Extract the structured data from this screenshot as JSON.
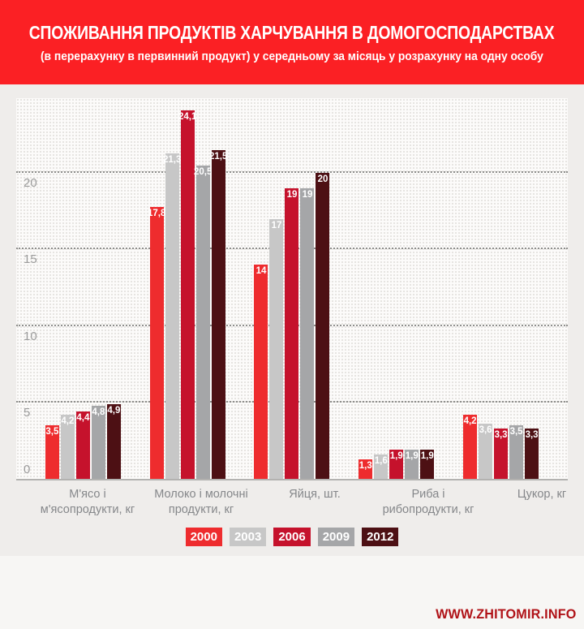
{
  "header": {
    "title": "СПОЖИВАННЯ ПРОДУКТІВ ХАРЧУВАННЯ В ДОМОГОСПОДАРСТВАХ",
    "subtitle": "(в перерахунку в первинний продукт) у середньому за місяць у розрахунку на одну особу"
  },
  "colors": {
    "header_bg": "#fb2024",
    "page_bg": "#efedeb",
    "plot_bg": "#fcfbfa",
    "gridline": "#8e8e8c",
    "axis_label": "#9b9b9b",
    "category_label": "#85878a",
    "footer_text": "#b01217"
  },
  "chart_data": {
    "type": "bar",
    "title": "СПОЖИВАННЯ ПРОДУКТІВ ХАРЧУВАННЯ В ДОМОГОСПОДАРСТВАХ",
    "subtitle": "(в перерахунку в первинний продукт) у середньому за місяць у розрахунку на одну особу",
    "categories": [
      "М'ясо і м'ясопродукти, кг",
      "Молоко і молочні продукти, кг",
      "Яйця, шт.",
      "Риба і рибопродукти, кг",
      "Цукор, кг"
    ],
    "category_lines": [
      [
        "М'ясо і",
        "м'ясопродукти, кг"
      ],
      [
        "Молоко і молочні",
        "продукти, кг"
      ],
      [
        "Яйця, шт."
      ],
      [
        "Риба і",
        "рибопродукти, кг"
      ],
      [
        "Цукор, кг"
      ]
    ],
    "series": [
      {
        "name": "2000",
        "color": "#ee2c2e",
        "values": [
          3.5,
          17.8,
          14,
          1.3,
          4.2
        ]
      },
      {
        "name": "2003",
        "color": "#c7c7c7",
        "values": [
          4.2,
          21.3,
          17,
          1.6,
          3.6
        ]
      },
      {
        "name": "2006",
        "color": "#c5122c",
        "values": [
          4.4,
          24.1,
          19,
          1.9,
          3.3
        ]
      },
      {
        "name": "2009",
        "color": "#a5a6a8",
        "values": [
          4.8,
          20.5,
          19,
          1.9,
          3.5
        ]
      },
      {
        "name": "2012",
        "color": "#4d1014",
        "values": [
          4.9,
          21.5,
          20,
          1.9,
          3.3
        ]
      }
    ],
    "y_ticks": [
      0,
      5,
      10,
      15,
      20
    ],
    "ylim": [
      0,
      25
    ],
    "grid": true,
    "legend_position": "bottom",
    "decimal_separator": ","
  },
  "footer": {
    "url": "WWW.ZHITOMIR.INFO"
  }
}
